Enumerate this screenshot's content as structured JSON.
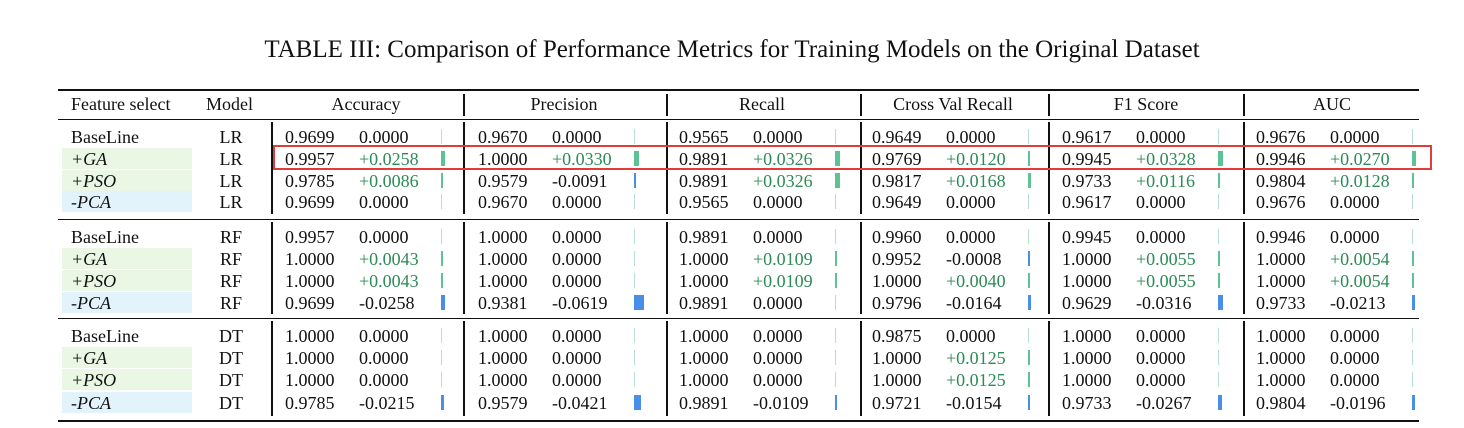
{
  "caption": "TABLE III: Comparison of Performance Metrics for Training Models on the Original Dataset",
  "headers": {
    "feature": "Feature select",
    "model": "Model",
    "metrics": [
      "Accuracy",
      "Precision",
      "Recall",
      "Cross Val Recall",
      "F1 Score",
      "AUC"
    ]
  },
  "colors": {
    "positive_bar": "#5cc394",
    "negative_bar": "#4a8fe7",
    "highlight_border": "#e23b3b",
    "ga_pso_bg": "#e9f7e4",
    "pca_bg": "#e2f3fb",
    "positive_text": "#2e8b57"
  },
  "groups": [
    {
      "model": "LR",
      "rows": [
        {
          "feature": "BaseLine",
          "cells": [
            {
              "v": "0.9699",
              "d": "0.0000",
              "bar": 0
            },
            {
              "v": "0.9670",
              "d": "0.0000",
              "bar": 0
            },
            {
              "v": "0.9565",
              "d": "0.0000",
              "bar": 0
            },
            {
              "v": "0.9649",
              "d": "0.0000",
              "bar": 0
            },
            {
              "v": "0.9617",
              "d": "0.0000",
              "bar": 0
            },
            {
              "v": "0.9676",
              "d": "0.0000",
              "bar": 0
            }
          ]
        },
        {
          "feature": "+GA",
          "cells": [
            {
              "v": "0.9957",
              "d": "+0.0258",
              "bar": 0.0258
            },
            {
              "v": "1.0000",
              "d": "+0.0330",
              "bar": 0.033
            },
            {
              "v": "0.9891",
              "d": "+0.0326",
              "bar": 0.0326
            },
            {
              "v": "0.9769",
              "d": "+0.0120",
              "bar": 0.012
            },
            {
              "v": "0.9945",
              "d": "+0.0328",
              "bar": 0.0328
            },
            {
              "v": "0.9946",
              "d": "+0.0270",
              "bar": 0.027
            }
          ]
        },
        {
          "feature": "+PSO",
          "cells": [
            {
              "v": "0.9785",
              "d": "+0.0086",
              "bar": 0.0086
            },
            {
              "v": "0.9579",
              "d": "-0.0091",
              "bar": -0.0091
            },
            {
              "v": "0.9891",
              "d": "+0.0326",
              "bar": 0.0326
            },
            {
              "v": "0.9817",
              "d": "+0.0168",
              "bar": 0.0168
            },
            {
              "v": "0.9733",
              "d": "+0.0116",
              "bar": 0.0116
            },
            {
              "v": "0.9804",
              "d": "+0.0128",
              "bar": 0.0128
            }
          ]
        },
        {
          "feature": "-PCA",
          "cells": [
            {
              "v": "0.9699",
              "d": "0.0000",
              "bar": 0
            },
            {
              "v": "0.9670",
              "d": "0.0000",
              "bar": 0
            },
            {
              "v": "0.9565",
              "d": "0.0000",
              "bar": 0
            },
            {
              "v": "0.9649",
              "d": "0.0000",
              "bar": 0
            },
            {
              "v": "0.9617",
              "d": "0.0000",
              "bar": 0
            },
            {
              "v": "0.9676",
              "d": "0.0000",
              "bar": 0
            }
          ]
        }
      ]
    },
    {
      "model": "RF",
      "rows": [
        {
          "feature": "BaseLine",
          "cells": [
            {
              "v": "0.9957",
              "d": "0.0000",
              "bar": 0
            },
            {
              "v": "1.0000",
              "d": "0.0000",
              "bar": 0
            },
            {
              "v": "0.9891",
              "d": "0.0000",
              "bar": 0
            },
            {
              "v": "0.9960",
              "d": "0.0000",
              "bar": 0
            },
            {
              "v": "0.9945",
              "d": "0.0000",
              "bar": 0
            },
            {
              "v": "0.9946",
              "d": "0.0000",
              "bar": 0
            }
          ]
        },
        {
          "feature": "+GA",
          "cells": [
            {
              "v": "1.0000",
              "d": "+0.0043",
              "bar": 0.0043
            },
            {
              "v": "1.0000",
              "d": "0.0000",
              "bar": 0
            },
            {
              "v": "1.0000",
              "d": "+0.0109",
              "bar": 0.0109
            },
            {
              "v": "0.9952",
              "d": "-0.0008",
              "bar": -0.0008
            },
            {
              "v": "1.0000",
              "d": "+0.0055",
              "bar": 0.0055
            },
            {
              "v": "1.0000",
              "d": "+0.0054",
              "bar": 0.0054
            }
          ]
        },
        {
          "feature": "+PSO",
          "cells": [
            {
              "v": "1.0000",
              "d": "+0.0043",
              "bar": 0.0043
            },
            {
              "v": "1.0000",
              "d": "0.0000",
              "bar": 0
            },
            {
              "v": "1.0000",
              "d": "+0.0109",
              "bar": 0.0109
            },
            {
              "v": "1.0000",
              "d": "+0.0040",
              "bar": 0.004
            },
            {
              "v": "1.0000",
              "d": "+0.0055",
              "bar": 0.0055
            },
            {
              "v": "1.0000",
              "d": "+0.0054",
              "bar": 0.0054
            }
          ]
        },
        {
          "feature": "-PCA",
          "cells": [
            {
              "v": "0.9699",
              "d": "-0.0258",
              "bar": -0.0258
            },
            {
              "v": "0.9381",
              "d": "-0.0619",
              "bar": -0.0619
            },
            {
              "v": "0.9891",
              "d": "0.0000",
              "bar": 0
            },
            {
              "v": "0.9796",
              "d": "-0.0164",
              "bar": -0.0164
            },
            {
              "v": "0.9629",
              "d": "-0.0316",
              "bar": -0.0316
            },
            {
              "v": "0.9733",
              "d": "-0.0213",
              "bar": -0.0213
            }
          ]
        }
      ]
    },
    {
      "model": "DT",
      "rows": [
        {
          "feature": "BaseLine",
          "cells": [
            {
              "v": "1.0000",
              "d": "0.0000",
              "bar": 0
            },
            {
              "v": "1.0000",
              "d": "0.0000",
              "bar": 0
            },
            {
              "v": "1.0000",
              "d": "0.0000",
              "bar": 0
            },
            {
              "v": "0.9875",
              "d": "0.0000",
              "bar": 0
            },
            {
              "v": "1.0000",
              "d": "0.0000",
              "bar": 0
            },
            {
              "v": "1.0000",
              "d": "0.0000",
              "bar": 0
            }
          ]
        },
        {
          "feature": "+GA",
          "cells": [
            {
              "v": "1.0000",
              "d": "0.0000",
              "bar": 0
            },
            {
              "v": "1.0000",
              "d": "0.0000",
              "bar": 0
            },
            {
              "v": "1.0000",
              "d": "0.0000",
              "bar": 0
            },
            {
              "v": "1.0000",
              "d": "+0.0125",
              "bar": 0.0125
            },
            {
              "v": "1.0000",
              "d": "0.0000",
              "bar": 0
            },
            {
              "v": "1.0000",
              "d": "0.0000",
              "bar": 0
            }
          ]
        },
        {
          "feature": "+PSO",
          "cells": [
            {
              "v": "1.0000",
              "d": "0.0000",
              "bar": 0
            },
            {
              "v": "1.0000",
              "d": "0.0000",
              "bar": 0
            },
            {
              "v": "1.0000",
              "d": "0.0000",
              "bar": 0
            },
            {
              "v": "1.0000",
              "d": "+0.0125",
              "bar": 0.0125
            },
            {
              "v": "1.0000",
              "d": "0.0000",
              "bar": 0
            },
            {
              "v": "1.0000",
              "d": "0.0000",
              "bar": 0
            }
          ]
        },
        {
          "feature": "-PCA",
          "cells": [
            {
              "v": "0.9785",
              "d": "-0.0215",
              "bar": -0.0215
            },
            {
              "v": "0.9579",
              "d": "-0.0421",
              "bar": -0.0421
            },
            {
              "v": "0.9891",
              "d": "-0.0109",
              "bar": -0.0109
            },
            {
              "v": "0.9721",
              "d": "-0.0154",
              "bar": -0.0154
            },
            {
              "v": "0.9733",
              "d": "-0.0267",
              "bar": -0.0267
            },
            {
              "v": "0.9804",
              "d": "-0.0196",
              "bar": -0.0196
            }
          ]
        }
      ]
    }
  ],
  "highlight": {
    "group": 0,
    "row": 1
  }
}
